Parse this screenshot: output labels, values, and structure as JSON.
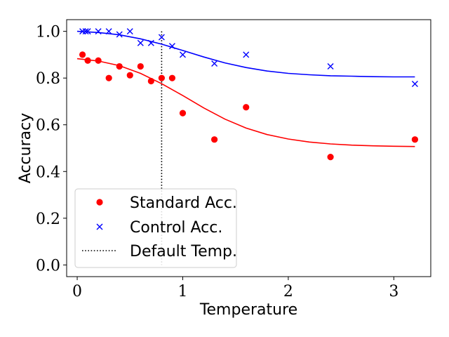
{
  "chart_data": {
    "type": "scatter",
    "xlabel": "Temperature",
    "ylabel": "Accuracy",
    "xlim": [
      -0.1,
      3.35
    ],
    "ylim": [
      -0.05,
      1.05
    ],
    "xticks": [
      0,
      1,
      2,
      3
    ],
    "yticks": [
      0.0,
      0.2,
      0.4,
      0.6,
      0.8,
      1.0
    ],
    "xtick_labels": [
      "0",
      "1",
      "2",
      "3"
    ],
    "ytick_labels": [
      "0.0",
      "0.2",
      "0.4",
      "0.6",
      "0.8",
      "1.0"
    ],
    "grid": false,
    "legend_position": "bottom-left",
    "series": [
      {
        "name": "Standard Acc.",
        "marker": "circle",
        "color": "#ff0000",
        "x": [
          0.05,
          0.1,
          0.2,
          0.3,
          0.4,
          0.5,
          0.6,
          0.7,
          0.8,
          0.9,
          1.0,
          1.3,
          1.6,
          2.4,
          3.2
        ],
        "y": [
          0.9,
          0.875,
          0.875,
          0.8,
          0.85,
          0.812,
          0.85,
          0.787,
          0.8,
          0.8,
          0.65,
          0.537,
          0.675,
          0.462,
          0.537
        ]
      },
      {
        "name": "Control Acc.",
        "marker": "x",
        "color": "#0000ff",
        "x": [
          0.05,
          0.08,
          0.1,
          0.2,
          0.3,
          0.4,
          0.5,
          0.6,
          0.7,
          0.8,
          0.9,
          1.0,
          1.3,
          1.6,
          2.4,
          3.2
        ],
        "y": [
          1.0,
          1.0,
          1.0,
          1.0,
          1.0,
          0.987,
          1.0,
          0.95,
          0.95,
          0.975,
          0.937,
          0.9,
          0.862,
          0.9,
          0.85,
          0.775
        ]
      }
    ],
    "fit_curves": [
      {
        "series": "Standard Acc.",
        "color": "#ff0000",
        "x": [
          0.0,
          0.2,
          0.4,
          0.6,
          0.8,
          1.0,
          1.2,
          1.4,
          1.6,
          1.8,
          2.0,
          2.2,
          2.4,
          2.6,
          2.8,
          3.0,
          3.2
        ],
        "y": [
          0.883,
          0.873,
          0.853,
          0.82,
          0.776,
          0.725,
          0.672,
          0.624,
          0.586,
          0.558,
          0.539,
          0.526,
          0.518,
          0.513,
          0.51,
          0.508,
          0.507
        ]
      },
      {
        "series": "Control Acc.",
        "color": "#0000ff",
        "x": [
          0.0,
          0.2,
          0.4,
          0.6,
          0.8,
          1.0,
          1.2,
          1.4,
          1.6,
          1.8,
          2.0,
          2.2,
          2.4,
          2.6,
          2.8,
          3.0,
          3.2
        ],
        "y": [
          1.0,
          0.995,
          0.985,
          0.968,
          0.945,
          0.918,
          0.89,
          0.865,
          0.845,
          0.83,
          0.82,
          0.814,
          0.81,
          0.808,
          0.806,
          0.805,
          0.805
        ]
      }
    ],
    "reference_lines": [
      {
        "name": "Default Temp.",
        "orientation": "vertical",
        "x": 0.8,
        "style": "dotted",
        "color": "#000000"
      }
    ],
    "legend": [
      "Standard Acc.",
      "Control Acc.",
      "Default Temp."
    ]
  }
}
